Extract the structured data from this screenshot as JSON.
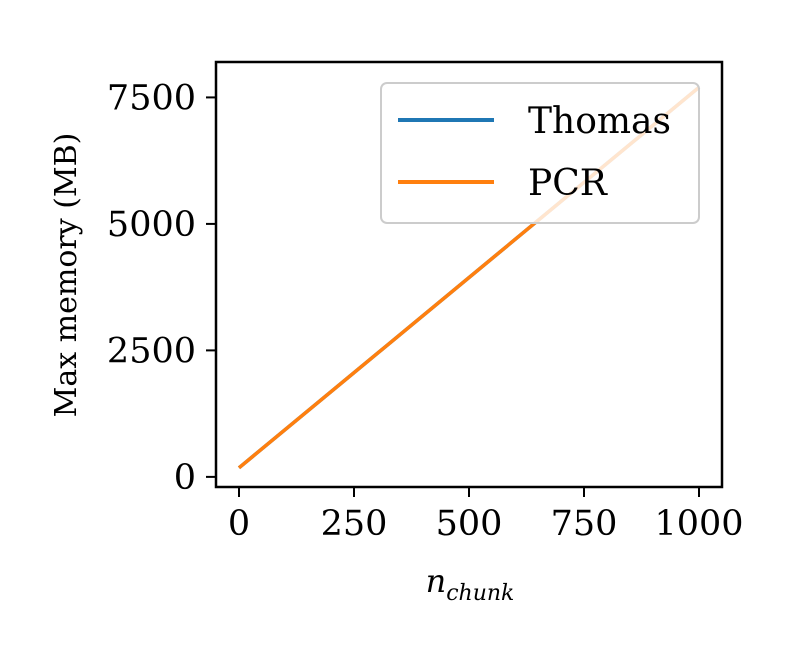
{
  "chart_data": {
    "type": "line",
    "title": "",
    "xlabel": {
      "main": "n",
      "sub": "chunk"
    },
    "ylabel": "Max memory (MB)",
    "xlim": [
      -50,
      1050
    ],
    "ylim": [
      -200,
      8200
    ],
    "xticks": [
      0,
      250,
      500,
      750,
      1000
    ],
    "yticks": [
      0,
      2500,
      5000,
      7500
    ],
    "xtick_labels": [
      "0",
      "250",
      "500",
      "750",
      "1000"
    ],
    "ytick_labels": [
      "0",
      "2500",
      "5000",
      "7500"
    ],
    "grid": false,
    "legend": {
      "placement": "top-right",
      "entries": [
        "Thomas",
        "PCR"
      ]
    },
    "series": [
      {
        "name": "Thomas",
        "color": "#1f77b4",
        "x": [
          0,
          1000
        ],
        "y": [
          180,
          7700
        ]
      },
      {
        "name": "PCR",
        "color": "#ff7f0e",
        "x": [
          0,
          1000
        ],
        "y": [
          180,
          7700
        ]
      }
    ]
  }
}
